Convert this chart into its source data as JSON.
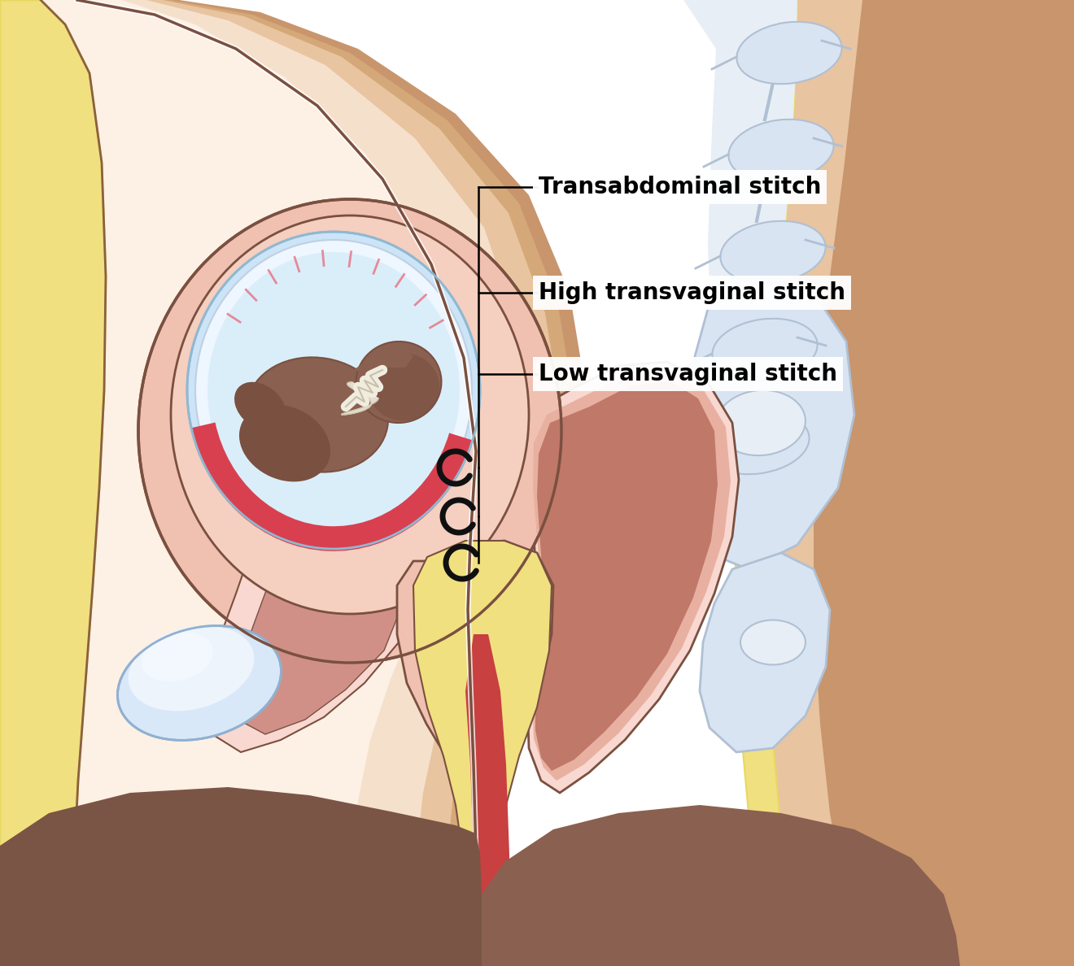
{
  "labels": {
    "transabdominal": "Transabdominal stitch",
    "high_transvaginal": "High transvaginal stitch",
    "low_transvaginal": "Low transvaginal stitch"
  },
  "label_fontsize": 20,
  "colors": {
    "bg": "#ffffff",
    "skin_dark": "#c8956c",
    "skin_mid": "#d4a878",
    "skin_light": "#e8c4a0",
    "skin_very_light": "#f5e0cc",
    "skin_highlight": "#fdf0e4",
    "fat_yellow": "#f0e080",
    "fat_yellow2": "#e8d860",
    "uterus_outer": "#f0c0b0",
    "uterus_wall": "#e8a898",
    "uterus_inner_wall": "#f5cfc0",
    "amniotic_blue": "#cce4f8",
    "amniotic_light": "#daeefa",
    "membrane_white": "#eef6ff",
    "placenta_red": "#d84050",
    "placenta_pink": "#e87080",
    "fetus_skin": "#7a5040",
    "fetus_mid": "#8a6050",
    "umbilical_white": "#f0ece0",
    "cervix_pink": "#e8a8a0",
    "vagina_canal": "#d89088",
    "red_strip": "#c84040",
    "bladder_blue": "#d8e8f8",
    "bladder_light": "#eef4fc",
    "rectum_outer": "#e8b0a0",
    "rectum_inner": "#d09088",
    "rectum_dark": "#c07868",
    "spine_bg": "#e8eef5",
    "spine_bone": "#d8e4f2",
    "spine_bone_outline": "#b0c0d4",
    "spine_process": "#c8d8ec",
    "pelvic_pink": "#f0c8c0",
    "pelvic_light": "#f8d8d0",
    "brown_skin": "#7a5545",
    "outline_dark": "#7a5040",
    "outline_brown": "#8b6040",
    "white_outline": "#ffffff",
    "stitch_black": "#101010"
  }
}
